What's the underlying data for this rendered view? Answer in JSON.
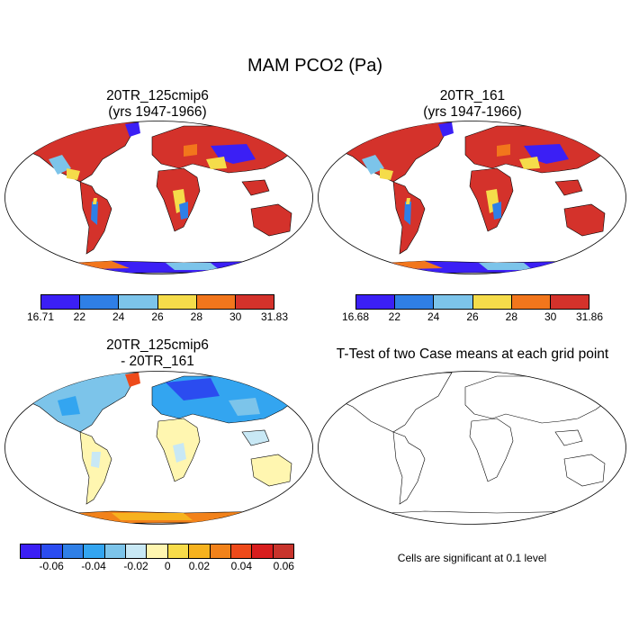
{
  "main_title": "MAM PCO2 (Pa)",
  "panels": [
    {
      "title_line1": "20TR_125cmip6",
      "title_line2": "(yrs 1947-1966)"
    },
    {
      "title_line1": "20TR_161",
      "title_line2": "(yrs 1947-1966)"
    },
    {
      "title_line1": "20TR_125cmip6",
      "title_line2": "- 20TR_161"
    },
    {
      "title_line1": "T-Test of two Case means at each grid point",
      "title_line2": ""
    }
  ],
  "colorbars": {
    "case1": {
      "labels": [
        "16.71",
        "22",
        "24",
        "26",
        "28",
        "30",
        "31.83"
      ],
      "colors": [
        "#3b1ff5",
        "#2f7fe6",
        "#7cc4ea",
        "#f5dc4a",
        "#f2761c",
        "#d4322b"
      ]
    },
    "case2": {
      "labels": [
        "16.68",
        "22",
        "24",
        "26",
        "28",
        "30",
        "31.86"
      ],
      "colors": [
        "#3b1ff5",
        "#2f7fe6",
        "#7cc4ea",
        "#f5dc4a",
        "#f2761c",
        "#d4322b"
      ]
    },
    "diff": {
      "labels": [
        "-0.06",
        "-0.04",
        "-0.02",
        "0",
        "0.02",
        "0.04",
        "0.06"
      ],
      "colors": [
        "#3b1ff5",
        "#2b4cf0",
        "#2f7fe6",
        "#33a5f0",
        "#7cc4ea",
        "#c8e8f5",
        "#fff6b0",
        "#f8dc4a",
        "#f6b21e",
        "#f2821a",
        "#ee4a1a",
        "#d81e1e",
        "#c8342c"
      ]
    }
  },
  "significance_note": "Cells are significant at 0.1 level"
}
